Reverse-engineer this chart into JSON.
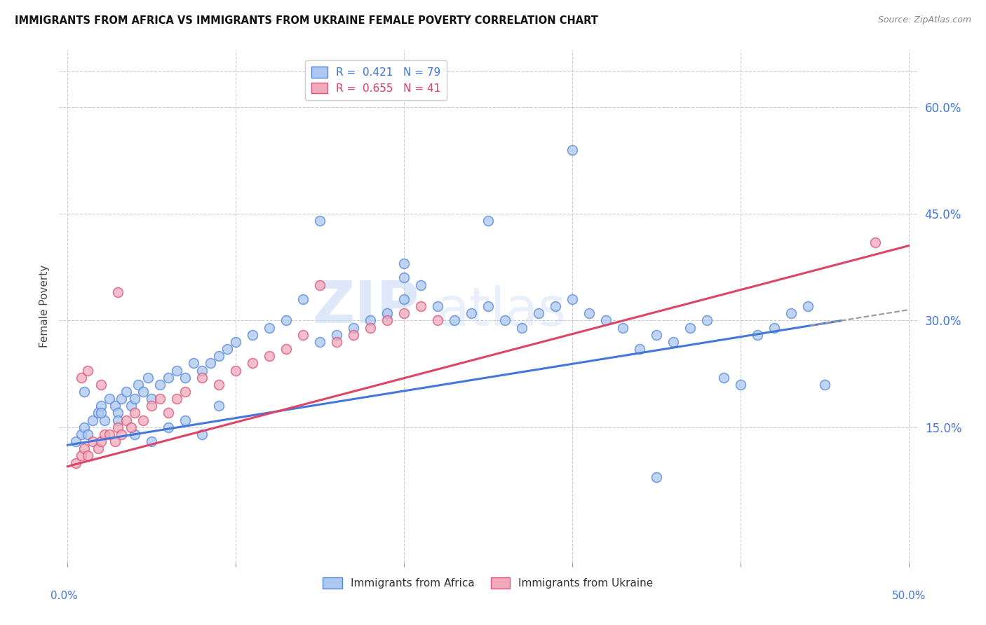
{
  "title": "IMMIGRANTS FROM AFRICA VS IMMIGRANTS FROM UKRAINE FEMALE POVERTY CORRELATION CHART",
  "source": "Source: ZipAtlas.com",
  "ylabel": "Female Poverty",
  "y_tick_labels": [
    "15.0%",
    "30.0%",
    "45.0%",
    "60.0%"
  ],
  "y_tick_values": [
    0.15,
    0.3,
    0.45,
    0.6
  ],
  "xlim": [
    -0.005,
    0.505
  ],
  "ylim": [
    -0.04,
    0.68
  ],
  "africa_color": "#adc8f0",
  "ukraine_color": "#f0aabb",
  "africa_edge_color": "#5588dd",
  "ukraine_edge_color": "#dd5577",
  "africa_line_color": "#4477dd",
  "ukraine_line_color": "#dd4466",
  "africa_R": 0.421,
  "africa_N": 79,
  "ukraine_R": 0.655,
  "ukraine_N": 41,
  "legend_label_africa": "Immigrants from Africa",
  "legend_label_ukraine": "Immigrants from Ukraine",
  "watermark_zip": "ZIP",
  "watermark_atlas": "atlas",
  "grid_color": "#cccccc",
  "africa_scatter_x": [
    0.005,
    0.008,
    0.01,
    0.012,
    0.015,
    0.018,
    0.02,
    0.022,
    0.025,
    0.028,
    0.03,
    0.032,
    0.035,
    0.038,
    0.04,
    0.042,
    0.045,
    0.048,
    0.05,
    0.055,
    0.06,
    0.065,
    0.07,
    0.075,
    0.08,
    0.085,
    0.09,
    0.095,
    0.1,
    0.11,
    0.12,
    0.13,
    0.14,
    0.15,
    0.16,
    0.17,
    0.18,
    0.19,
    0.2,
    0.21,
    0.22,
    0.23,
    0.24,
    0.25,
    0.26,
    0.27,
    0.28,
    0.29,
    0.3,
    0.31,
    0.32,
    0.33,
    0.34,
    0.35,
    0.36,
    0.37,
    0.38,
    0.39,
    0.4,
    0.41,
    0.42,
    0.43,
    0.44,
    0.45,
    0.01,
    0.02,
    0.03,
    0.04,
    0.05,
    0.06,
    0.07,
    0.08,
    0.09,
    0.2,
    0.25,
    0.3,
    0.35,
    0.2,
    0.15
  ],
  "africa_scatter_y": [
    0.13,
    0.14,
    0.15,
    0.14,
    0.16,
    0.17,
    0.18,
    0.16,
    0.19,
    0.18,
    0.17,
    0.19,
    0.2,
    0.18,
    0.19,
    0.21,
    0.2,
    0.22,
    0.19,
    0.21,
    0.22,
    0.23,
    0.22,
    0.24,
    0.23,
    0.24,
    0.25,
    0.26,
    0.27,
    0.28,
    0.29,
    0.3,
    0.33,
    0.27,
    0.28,
    0.29,
    0.3,
    0.31,
    0.33,
    0.35,
    0.32,
    0.3,
    0.31,
    0.32,
    0.3,
    0.29,
    0.31,
    0.32,
    0.33,
    0.31,
    0.3,
    0.29,
    0.26,
    0.28,
    0.27,
    0.29,
    0.3,
    0.22,
    0.21,
    0.28,
    0.29,
    0.31,
    0.32,
    0.21,
    0.2,
    0.17,
    0.16,
    0.14,
    0.13,
    0.15,
    0.16,
    0.14,
    0.18,
    0.38,
    0.44,
    0.54,
    0.08,
    0.36,
    0.44
  ],
  "ukraine_scatter_x": [
    0.005,
    0.008,
    0.01,
    0.012,
    0.015,
    0.018,
    0.02,
    0.022,
    0.025,
    0.028,
    0.03,
    0.032,
    0.035,
    0.038,
    0.04,
    0.045,
    0.05,
    0.055,
    0.06,
    0.065,
    0.07,
    0.08,
    0.09,
    0.1,
    0.11,
    0.12,
    0.13,
    0.14,
    0.15,
    0.16,
    0.17,
    0.18,
    0.19,
    0.2,
    0.21,
    0.22,
    0.008,
    0.012,
    0.02,
    0.03,
    0.48
  ],
  "ukraine_scatter_y": [
    0.1,
    0.11,
    0.12,
    0.11,
    0.13,
    0.12,
    0.13,
    0.14,
    0.14,
    0.13,
    0.15,
    0.14,
    0.16,
    0.15,
    0.17,
    0.16,
    0.18,
    0.19,
    0.17,
    0.19,
    0.2,
    0.22,
    0.21,
    0.23,
    0.24,
    0.25,
    0.26,
    0.28,
    0.35,
    0.27,
    0.28,
    0.29,
    0.3,
    0.31,
    0.32,
    0.3,
    0.22,
    0.23,
    0.21,
    0.34,
    0.41
  ]
}
